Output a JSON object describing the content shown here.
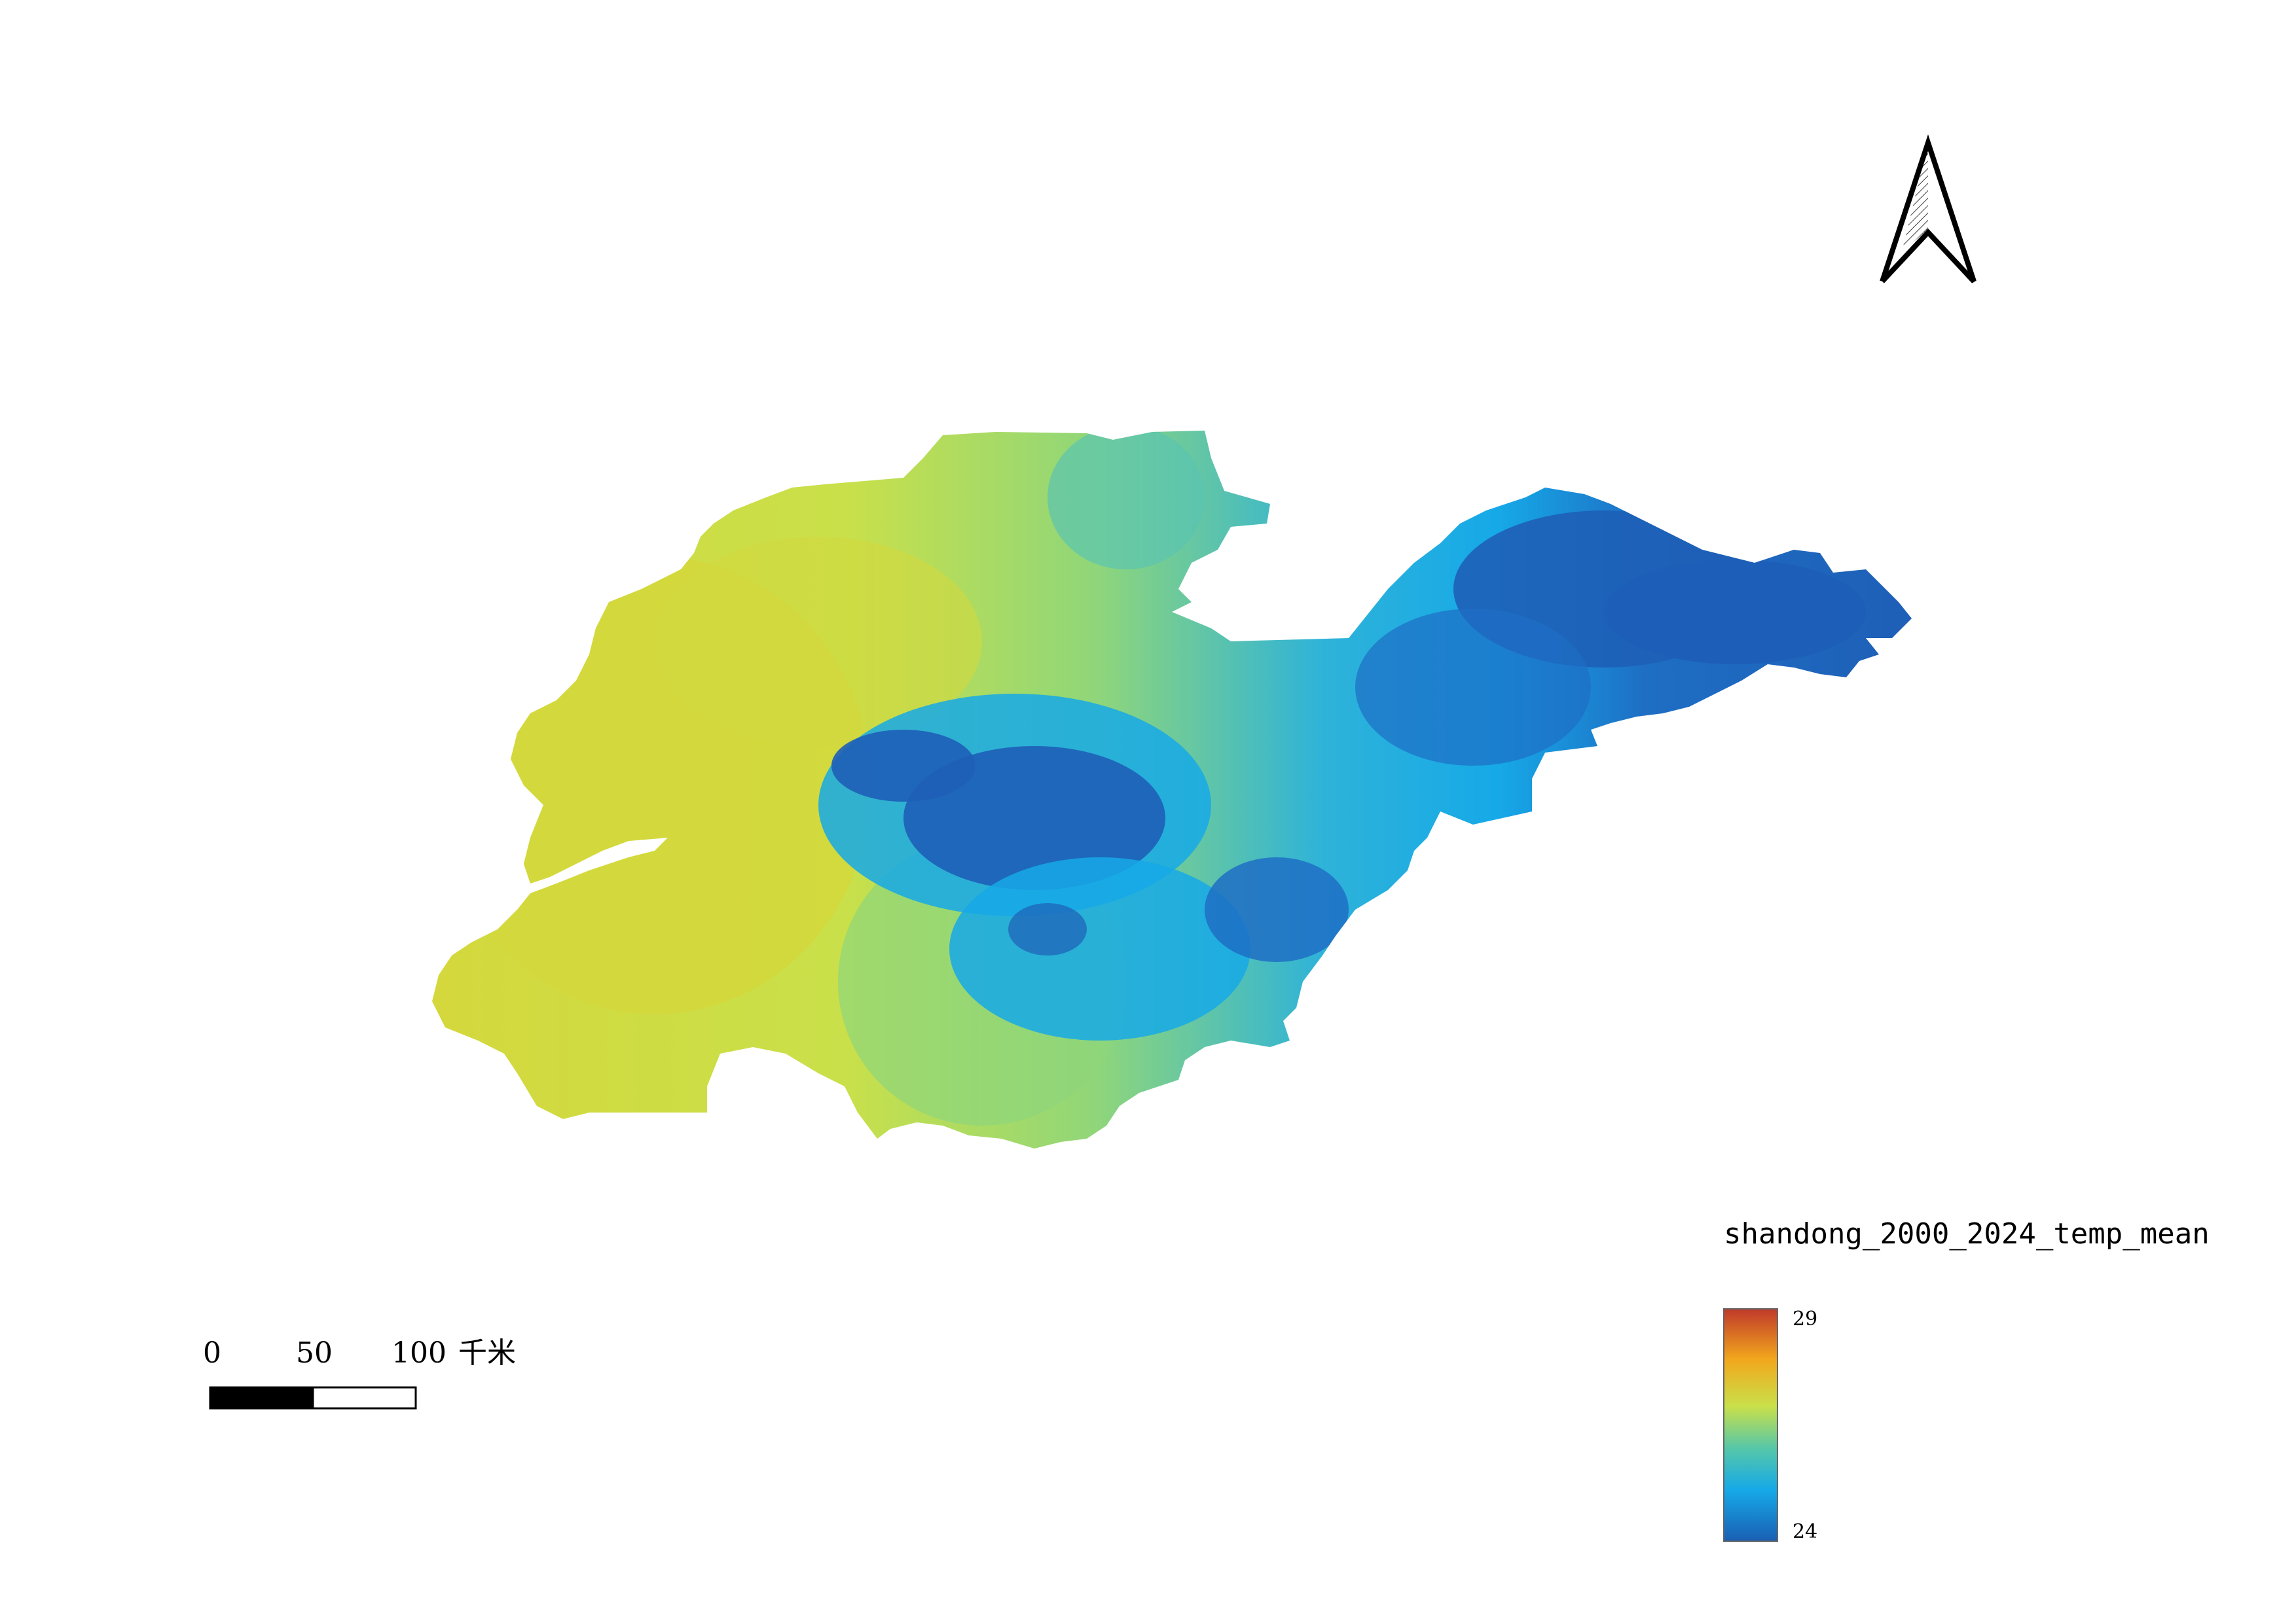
{
  "legend": {
    "title": "shandong_2000_2024_temp_mean",
    "max_label": "29",
    "min_label": "24",
    "max_value": 29,
    "min_value": 24,
    "colors": [
      "#1a5fb4",
      "#16a9e8",
      "#56c7a8",
      "#c9e04a",
      "#f2a81d",
      "#c0392b"
    ]
  },
  "scale_bar": {
    "labels": [
      "0",
      "50",
      "100"
    ],
    "unit": "千米"
  },
  "north_arrow": {
    "icon": "north-arrow-icon"
  },
  "map": {
    "region": "shandong-raster",
    "colors": {
      "warm": "#d4d83c",
      "mid": "#c6e34e",
      "cool": "#5bc4b0",
      "cold": "#16a9e8",
      "coldest": "#1e5fb7"
    }
  }
}
